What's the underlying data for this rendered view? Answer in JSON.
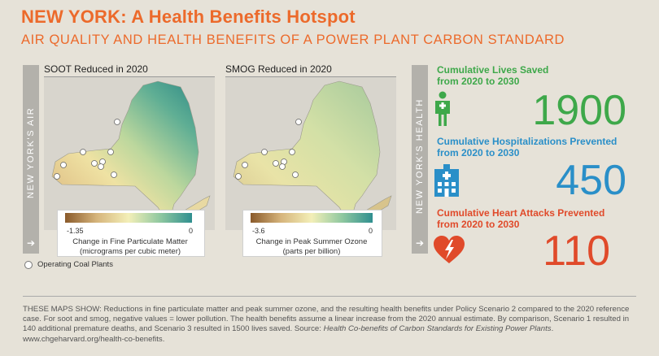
{
  "header": {
    "title": "NEW YORK: A Health Benefits Hotspot",
    "subtitle": "AIR QUALITY AND HEALTH BENEFITS OF A POWER PLANT CARBON STANDARD"
  },
  "left_panel": {
    "side_label": "NEW YORK'S AIR",
    "arrow": "➔"
  },
  "right_panel": {
    "side_label": "NEW YORK'S HEALTH",
    "arrow": "➔"
  },
  "maps": [
    {
      "title": "SOOT Reduced in 2020",
      "legend_min": "-1.35",
      "legend_max": "0",
      "caption_line1": "Change in Fine Particulate Matter",
      "caption_line2": "(micrograms per cubic meter)"
    },
    {
      "title": "SMOG Reduced in 2020",
      "legend_min": "-3.6",
      "legend_max": "0",
      "caption_line1": "Change in Peak Summer Ozone",
      "caption_line2": "(parts per billion)"
    }
  ],
  "coal_legend": {
    "label": "Operating Coal Plants"
  },
  "stats": [
    {
      "label_line1": "Cumulative Lives Saved",
      "label_line2": "from 2020 to 2030",
      "value": "1900",
      "color": "#3ea84a",
      "icon": "person-icon"
    },
    {
      "label_line1": "Cumulative Hospitalizations Prevented",
      "label_line2": "from 2020 to 2030",
      "value": "450",
      "color": "#2a8fc8",
      "icon": "hospital-icon"
    },
    {
      "label_line1": "Cumulative Heart Attacks Prevented",
      "label_line2": "from 2020 to 2030",
      "value": "110",
      "color": "#e04a2a",
      "icon": "heart-icon"
    }
  ],
  "footnote": {
    "text": "THESE MAPS SHOW: Reductions in fine particulate matter and peak summer ozone, and the resulting health benefits under Policy Scenario 2 compared to the 2020 reference case. For soot and smog, negative values = lower pollution. The health benefits assume a linear increase from the 2020 annual estimate. By comparison, Scenario 1 resulted in 140 additional premature deaths, and Scenario 3 resulted in 1500 lives saved. Source: ",
    "source_title": "Health Co-benefits of Carbon Standards for Existing Power Plants",
    "url": ". www.chgeharvard.org/health-co-benefits."
  },
  "colors": {
    "accent": "#ec6a2b",
    "soot_gradient": [
      "#8a5a2b",
      "#d6b57c",
      "#f3efb8",
      "#8fc8a0",
      "#2f8f8f"
    ],
    "smog_gradient": [
      "#8a5a2b",
      "#d6b57c",
      "#f3efb8",
      "#8fc8a0",
      "#2f8f8f"
    ]
  }
}
